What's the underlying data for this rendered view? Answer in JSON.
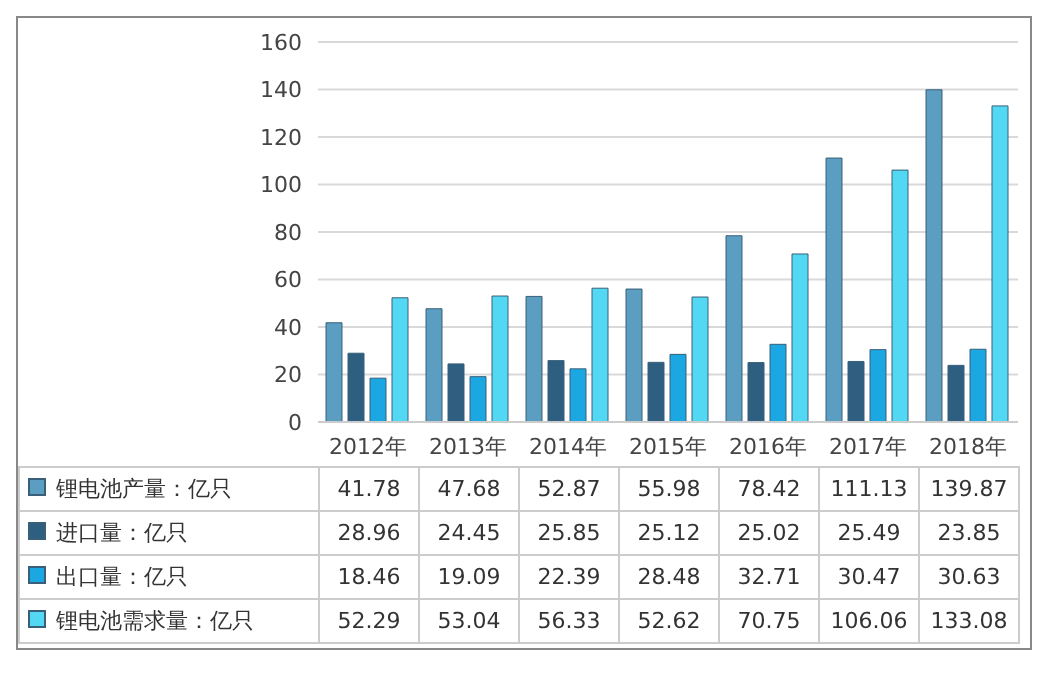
{
  "chart_data": {
    "type": "bar",
    "categories": [
      "2012年",
      "2013年",
      "2014年",
      "2015年",
      "2016年",
      "2017年",
      "2018年"
    ],
    "series": [
      {
        "name": "锂电池产量：亿只",
        "color": "#5b9ec2",
        "values": [
          41.78,
          47.68,
          52.87,
          55.98,
          78.42,
          111.13,
          139.87
        ]
      },
      {
        "name": "进口量：亿只",
        "color": "#2e5f80",
        "values": [
          28.96,
          24.45,
          25.85,
          25.12,
          25.02,
          25.49,
          23.85
        ]
      },
      {
        "name": "出口量：亿只",
        "color": "#1ba8e2",
        "values": [
          18.46,
          19.09,
          22.39,
          28.48,
          32.71,
          30.47,
          30.63
        ]
      },
      {
        "name": "锂电池需求量：亿只",
        "color": "#52d8f2",
        "values": [
          52.29,
          53.04,
          56.33,
          52.62,
          70.75,
          106.06,
          133.08
        ]
      }
    ],
    "ylim": [
      0,
      160
    ],
    "yticks": [
      0,
      20,
      40,
      60,
      80,
      100,
      120,
      140,
      160
    ],
    "grid": "y",
    "legend": "bottom",
    "data_labels": true
  }
}
